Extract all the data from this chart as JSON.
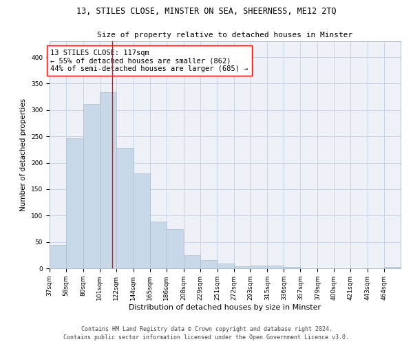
{
  "title1": "13, STILES CLOSE, MINSTER ON SEA, SHEERNESS, ME12 2TQ",
  "title2": "Size of property relative to detached houses in Minster",
  "xlabel": "Distribution of detached houses by size in Minster",
  "ylabel": "Number of detached properties",
  "bar_color": "#c8d8e8",
  "bar_edge_color": "#a8bece",
  "grid_color": "#c8d4e4",
  "background_color": "#eef2f8",
  "annotation_text": "13 STILES CLOSE: 117sqm\n← 55% of detached houses are smaller (862)\n44% of semi-detached houses are larger (685) →",
  "vline_x": 117,
  "categories": [
    "37sqm",
    "58sqm",
    "80sqm",
    "101sqm",
    "122sqm",
    "144sqm",
    "165sqm",
    "186sqm",
    "208sqm",
    "229sqm",
    "251sqm",
    "272sqm",
    "293sqm",
    "315sqm",
    "336sqm",
    "357sqm",
    "379sqm",
    "400sqm",
    "421sqm",
    "443sqm",
    "464sqm"
  ],
  "bin_edges": [
    37,
    58,
    80,
    101,
    122,
    144,
    165,
    186,
    208,
    229,
    251,
    272,
    293,
    315,
    336,
    357,
    379,
    400,
    421,
    443,
    464,
    485
  ],
  "values": [
    44,
    246,
    311,
    333,
    228,
    180,
    89,
    74,
    25,
    16,
    9,
    4,
    5,
    5,
    3,
    0,
    0,
    0,
    0,
    0,
    3
  ],
  "ylim": [
    0,
    430
  ],
  "yticks": [
    0,
    50,
    100,
    150,
    200,
    250,
    300,
    350,
    400
  ],
  "footer": "Contains HM Land Registry data © Crown copyright and database right 2024.\nContains public sector information licensed under the Open Government Licence v3.0.",
  "title1_fontsize": 8.5,
  "title2_fontsize": 8.0,
  "annotation_fontsize": 7.5,
  "axis_fontsize": 7.0,
  "ylabel_fontsize": 7.5,
  "xlabel_fontsize": 8.0,
  "footer_fontsize": 6.0,
  "tick_fontsize": 6.5
}
